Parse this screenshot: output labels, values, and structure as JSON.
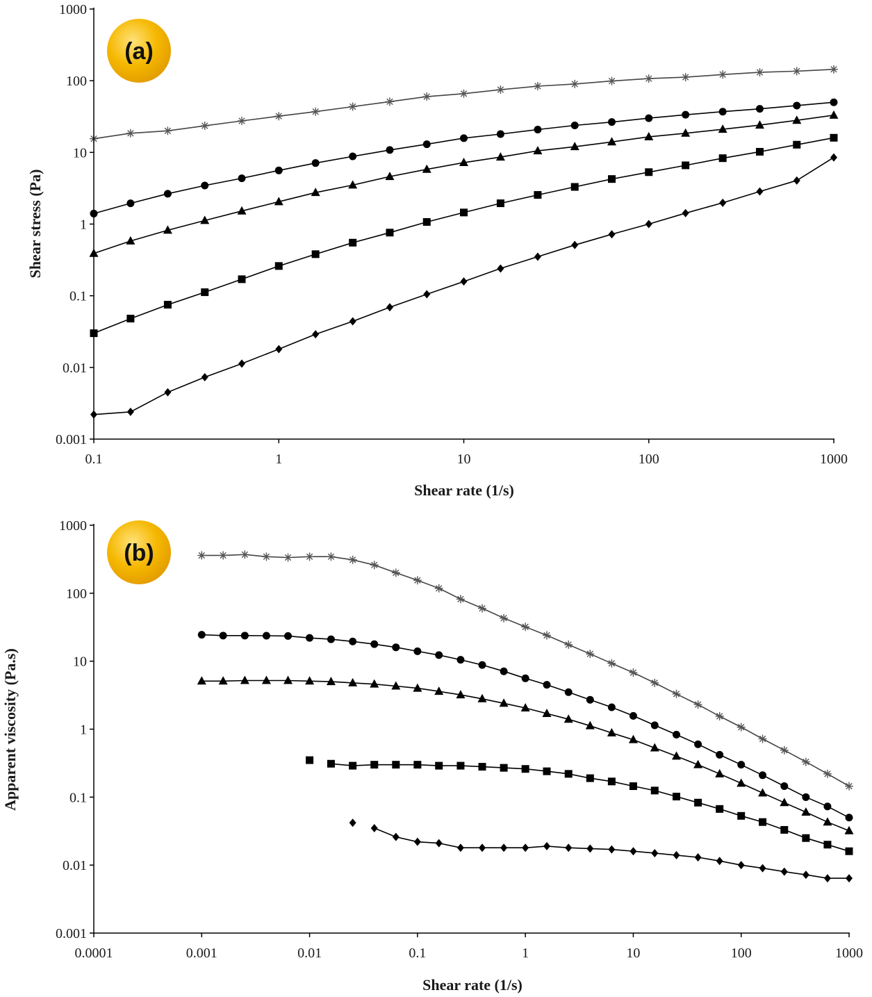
{
  "figure_name": "rheology-figure",
  "chart_data": [
    {
      "id": "a",
      "type": "line",
      "panel_label": "(a)",
      "badge_color": "#F5B800",
      "xlabel": "Shear rate (1/s)",
      "ylabel": "Shear stress (Pa)",
      "xscale": "log",
      "yscale": "log",
      "xlim": [
        0.1,
        1000
      ],
      "ylim": [
        0.001,
        1000
      ],
      "xticks": [
        0.1,
        1,
        10,
        100,
        1000
      ],
      "xtick_labels": [
        "0.1",
        "1",
        "10",
        "100",
        "1000"
      ],
      "yticks": [
        0.001,
        0.01,
        0.1,
        1,
        10,
        100,
        1000
      ],
      "ytick_labels": [
        "0.001",
        "0.01",
        "0.1",
        "1",
        "10",
        "100",
        "1000"
      ],
      "grid": false,
      "x": [
        0.1,
        0.158,
        0.251,
        0.398,
        0.631,
        1,
        1.58,
        2.51,
        3.98,
        6.31,
        10,
        15.8,
        25.1,
        39.8,
        63.1,
        100,
        158,
        251,
        398,
        631,
        1000
      ],
      "series": [
        {
          "name": "asterisk",
          "marker": "asterisk",
          "values": [
            15.5,
            18.5,
            20,
            23.5,
            27.5,
            32,
            37,
            43.5,
            51,
            60,
            66,
            75,
            84,
            90,
            99,
            107,
            112,
            122,
            131,
            136,
            144
          ]
        },
        {
          "name": "circle",
          "marker": "circle",
          "values": [
            1.4,
            1.95,
            2.65,
            3.45,
            4.35,
            5.6,
            7.1,
            8.8,
            10.8,
            13,
            15.8,
            18,
            20.8,
            23.8,
            26.5,
            30,
            33.5,
            37,
            40.5,
            45,
            50
          ]
        },
        {
          "name": "triangle",
          "marker": "triangle",
          "values": [
            0.39,
            0.58,
            0.82,
            1.12,
            1.52,
            2.05,
            2.75,
            3.5,
            4.6,
            5.8,
            7.2,
            8.6,
            10.5,
            12,
            14,
            16.5,
            18.5,
            21,
            24,
            28,
            33
          ]
        },
        {
          "name": "square",
          "marker": "square",
          "values": [
            0.03,
            0.048,
            0.075,
            0.112,
            0.17,
            0.26,
            0.38,
            0.55,
            0.76,
            1.07,
            1.45,
            1.95,
            2.55,
            3.3,
            4.25,
            5.3,
            6.6,
            8.3,
            10.2,
            12.8,
            16
          ]
        },
        {
          "name": "diamond",
          "marker": "diamond",
          "values": [
            0.0022,
            0.0024,
            0.0045,
            0.0073,
            0.0113,
            0.018,
            0.029,
            0.044,
            0.069,
            0.105,
            0.158,
            0.24,
            0.35,
            0.51,
            0.72,
            1.0,
            1.42,
            1.98,
            2.85,
            4.05,
            8.5
          ]
        }
      ]
    },
    {
      "id": "b",
      "type": "line",
      "panel_label": "(b)",
      "badge_color": "#F5B800",
      "xlabel": "Shear rate (1/s)",
      "ylabel": "Apparent viscosity (Pa.s)",
      "xscale": "log",
      "yscale": "log",
      "xlim": [
        0.0001,
        1000
      ],
      "ylim": [
        0.001,
        1000
      ],
      "xticks": [
        0.0001,
        0.001,
        0.01,
        0.1,
        1,
        10,
        100,
        1000
      ],
      "xtick_labels": [
        "0.0001",
        "0.001",
        "0.01",
        "0.1",
        "1",
        "10",
        "100",
        "1000"
      ],
      "yticks": [
        0.001,
        0.01,
        0.1,
        1,
        10,
        100,
        1000
      ],
      "ytick_labels": [
        "0.001",
        "0.01",
        "0.1",
        "1",
        "10",
        "100",
        "1000"
      ],
      "grid": false,
      "series": [
        {
          "name": "asterisk",
          "marker": "asterisk",
          "x": [
            0.001,
            0.00158,
            0.00251,
            0.00398,
            0.00631,
            0.01,
            0.0158,
            0.0251,
            0.0398,
            0.0631,
            0.1,
            0.158,
            0.251,
            0.398,
            0.631,
            1,
            1.58,
            2.51,
            3.98,
            6.31,
            10,
            15.8,
            25.1,
            39.8,
            63.1,
            100,
            158,
            251,
            398,
            631,
            1000
          ],
          "values": [
            360,
            360,
            370,
            345,
            335,
            345,
            345,
            310,
            260,
            200,
            155,
            118,
            82,
            60,
            43,
            32,
            24,
            17.5,
            12.8,
            9.3,
            6.8,
            4.8,
            3.3,
            2.3,
            1.55,
            1.07,
            0.72,
            0.49,
            0.33,
            0.22,
            0.145
          ]
        },
        {
          "name": "circle",
          "marker": "circle",
          "x": [
            0.001,
            0.00158,
            0.00251,
            0.00398,
            0.00631,
            0.01,
            0.0158,
            0.0251,
            0.0398,
            0.0631,
            0.1,
            0.158,
            0.251,
            0.398,
            0.631,
            1,
            1.58,
            2.51,
            3.98,
            6.31,
            10,
            15.8,
            25.1,
            39.8,
            63.1,
            100,
            158,
            251,
            398,
            631,
            1000
          ],
          "values": [
            24.5,
            23.8,
            23.8,
            23.7,
            23.5,
            22,
            21,
            19.5,
            17.8,
            16,
            14,
            12.3,
            10.5,
            8.8,
            7.1,
            5.6,
            4.5,
            3.5,
            2.7,
            2.1,
            1.57,
            1.14,
            0.83,
            0.6,
            0.42,
            0.3,
            0.21,
            0.145,
            0.1,
            0.073,
            0.05
          ]
        },
        {
          "name": "triangle",
          "marker": "triangle",
          "x": [
            0.001,
            0.00158,
            0.00251,
            0.00398,
            0.00631,
            0.01,
            0.0158,
            0.0251,
            0.0398,
            0.0631,
            0.1,
            0.158,
            0.251,
            0.398,
            0.631,
            1,
            1.58,
            2.51,
            3.98,
            6.31,
            10,
            15.8,
            25.1,
            39.8,
            63.1,
            100,
            158,
            251,
            398,
            631,
            1000
          ],
          "values": [
            5.1,
            5.1,
            5.2,
            5.2,
            5.2,
            5.1,
            5.0,
            4.8,
            4.6,
            4.3,
            4.0,
            3.6,
            3.2,
            2.8,
            2.4,
            2.05,
            1.7,
            1.4,
            1.12,
            0.88,
            0.7,
            0.53,
            0.4,
            0.3,
            0.22,
            0.16,
            0.115,
            0.083,
            0.06,
            0.043,
            0.032
          ]
        },
        {
          "name": "square",
          "marker": "square",
          "x": [
            0.01,
            0.0158,
            0.0251,
            0.0398,
            0.0631,
            0.1,
            0.158,
            0.251,
            0.398,
            0.631,
            1,
            1.58,
            2.51,
            3.98,
            6.31,
            10,
            15.8,
            25.1,
            39.8,
            63.1,
            100,
            158,
            251,
            398,
            631,
            1000
          ],
          "values": [
            0.35,
            0.31,
            0.29,
            0.3,
            0.3,
            0.3,
            0.29,
            0.29,
            0.28,
            0.27,
            0.26,
            0.24,
            0.22,
            0.19,
            0.17,
            0.145,
            0.125,
            0.102,
            0.083,
            0.067,
            0.053,
            0.043,
            0.033,
            0.025,
            0.02,
            0.016
          ],
          "gap_after_first": true
        },
        {
          "name": "diamond",
          "marker": "diamond",
          "x": [
            0.0251,
            0.0398,
            0.0631,
            0.1,
            0.158,
            0.251,
            0.398,
            0.631,
            1,
            1.58,
            2.51,
            3.98,
            6.31,
            10,
            15.8,
            25.1,
            39.8,
            63.1,
            100,
            158,
            251,
            398,
            631,
            1000
          ],
          "values": [
            0.042,
            0.035,
            0.026,
            0.022,
            0.021,
            0.018,
            0.018,
            0.018,
            0.018,
            0.019,
            0.018,
            0.0175,
            0.017,
            0.016,
            0.015,
            0.014,
            0.013,
            0.0115,
            0.01,
            0.009,
            0.008,
            0.0072,
            0.0064,
            0.0064
          ],
          "gap_after_first": true
        }
      ]
    }
  ]
}
